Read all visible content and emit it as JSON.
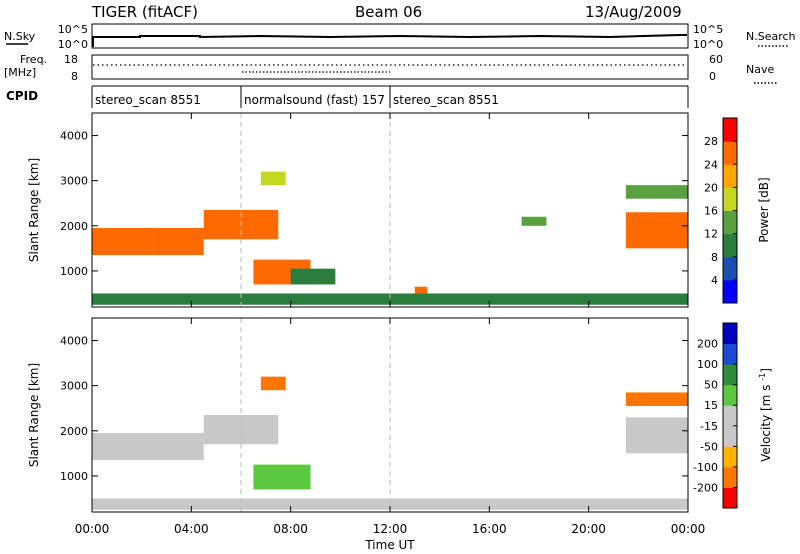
{
  "header": {
    "station": "TIGER (fitACF)",
    "beam": "Beam 06",
    "date": "13/Aug/2009"
  },
  "sky_panel": {
    "left_label": "N.Sky",
    "left_ticks": [
      "10^5",
      "10^0"
    ],
    "right_ticks": [
      "10^5",
      "10^0"
    ],
    "right_label": "N.Search"
  },
  "freq_panel": {
    "left_label_line1": "Freq.",
    "left_label_line2": "[MHz]",
    "left_ticks": [
      "18",
      "8"
    ],
    "right_ticks": [
      "60",
      "0"
    ],
    "right_label": "Nave"
  },
  "cpid_panel": {
    "label": "CPID",
    "segments": [
      {
        "label": "stereo_scan 8551",
        "start_hour": 0,
        "end_hour": 6
      },
      {
        "label": "normalsound (fast) 157",
        "start_hour": 6,
        "end_hour": 12
      },
      {
        "label": "stereo_scan 8551",
        "start_hour": 12,
        "end_hour": 24
      }
    ]
  },
  "x_axis": {
    "label": "Time UT",
    "ticks": [
      "00:00",
      "04:00",
      "08:00",
      "12:00",
      "16:00",
      "20:00",
      "00:00"
    ],
    "range_hours": [
      0,
      24
    ]
  },
  "colors": {
    "power_scale": [
      "#0000ff",
      "#1b4fb4",
      "#2a7d3c",
      "#58a040",
      "#c2d71e",
      "#ffa500",
      "#ff6a00",
      "#ff0000"
    ],
    "velocity_scale": [
      "#0000c0",
      "#1c4bd4",
      "#2e8b3c",
      "#5cc840",
      "#c8c8c8",
      "#c8c8c8",
      "#ffb300",
      "#ff7700",
      "#ff0000"
    ]
  },
  "chart_data": [
    {
      "type": "heatmap",
      "panel": "power",
      "ylabel": "Slant Range [km]",
      "yticks": [
        "1000",
        "2000",
        "3000",
        "4000"
      ],
      "ylim": [
        200,
        4500
      ],
      "colorbar_label": "Power [dB]",
      "colorbar_ticks": [
        "4",
        "8",
        "12",
        "16",
        "20",
        "24",
        "28"
      ],
      "colorbar_range": [
        0,
        32
      ],
      "regions": [
        {
          "t0": 0.0,
          "t1": 2.5,
          "r0": 1350,
          "r1": 1950,
          "level": 27
        },
        {
          "t0": 2.5,
          "t1": 4.5,
          "r0": 1350,
          "r1": 1950,
          "level": 26
        },
        {
          "t0": 4.5,
          "t1": 7.5,
          "r0": 1700,
          "r1": 2350,
          "level": 25
        },
        {
          "t0": 6.5,
          "t1": 8.8,
          "r0": 700,
          "r1": 1250,
          "level": 26
        },
        {
          "t0": 8.0,
          "t1": 9.8,
          "r0": 700,
          "r1": 1050,
          "level": 10
        },
        {
          "t0": 6.8,
          "t1": 7.8,
          "r0": 2900,
          "r1": 3200,
          "level": 18
        },
        {
          "t0": 21.5,
          "t1": 24.0,
          "r0": 1500,
          "r1": 2300,
          "level": 24
        },
        {
          "t0": 21.5,
          "t1": 24.0,
          "r0": 2600,
          "r1": 2900,
          "level": 12
        },
        {
          "t0": 17.3,
          "t1": 18.3,
          "r0": 2000,
          "r1": 2200,
          "level": 14
        },
        {
          "t0": 13.0,
          "t1": 13.5,
          "r0": 500,
          "r1": 650,
          "level": 24
        },
        {
          "t0": 0.0,
          "t1": 24.0,
          "r0": 250,
          "r1": 500,
          "level": 9
        }
      ]
    },
    {
      "type": "heatmap",
      "panel": "velocity",
      "ylabel": "Slant Range [km]",
      "yticks": [
        "1000",
        "2000",
        "3000",
        "4000"
      ],
      "ylim": [
        200,
        4500
      ],
      "colorbar_label": "Velocity [m s^-1]",
      "colorbar_ticks": [
        "200",
        "100",
        "50",
        "15",
        "-15",
        "-50",
        "-100",
        "-200"
      ],
      "colorbar_range": [
        -250,
        250
      ],
      "regions": [
        {
          "t0": 0.0,
          "t1": 4.5,
          "r0": 1350,
          "r1": 1950,
          "level": 0
        },
        {
          "t0": 4.5,
          "t1": 7.5,
          "r0": 1700,
          "r1": 2350,
          "level": 0
        },
        {
          "t0": 6.5,
          "t1": 8.8,
          "r0": 700,
          "r1": 1250,
          "level": 40
        },
        {
          "t0": 6.8,
          "t1": 7.8,
          "r0": 2900,
          "r1": 3200,
          "level": -180
        },
        {
          "t0": 21.5,
          "t1": 24.0,
          "r0": 2550,
          "r1": 2850,
          "level": -200
        },
        {
          "t0": 21.5,
          "t1": 24.0,
          "r0": 1500,
          "r1": 2300,
          "level": 0
        },
        {
          "t0": 0.0,
          "t1": 24.0,
          "r0": 250,
          "r1": 500,
          "level": -10
        }
      ]
    }
  ]
}
